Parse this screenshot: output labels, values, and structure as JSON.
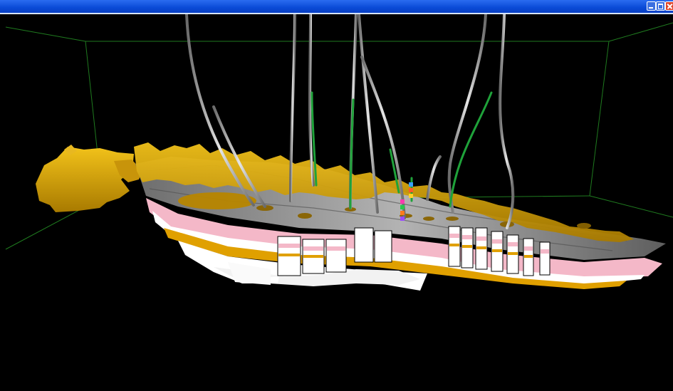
{
  "window": {
    "title": "",
    "controls": [
      "minimize",
      "maximize",
      "close"
    ]
  },
  "scene": {
    "view": "3d-reservoir-model",
    "background_color": "#000000",
    "bounding_box_color": "#1f7a1f",
    "surface_color": "#d9a300",
    "grid_color": "#8f8f8f",
    "layer_colors": [
      "#f4b8c8",
      "#ffffff",
      "#e0a000",
      "#c7c7c7"
    ],
    "well_color": "#cfcfcf",
    "well_log_color": "#1fa23a",
    "wells_count": 13
  }
}
